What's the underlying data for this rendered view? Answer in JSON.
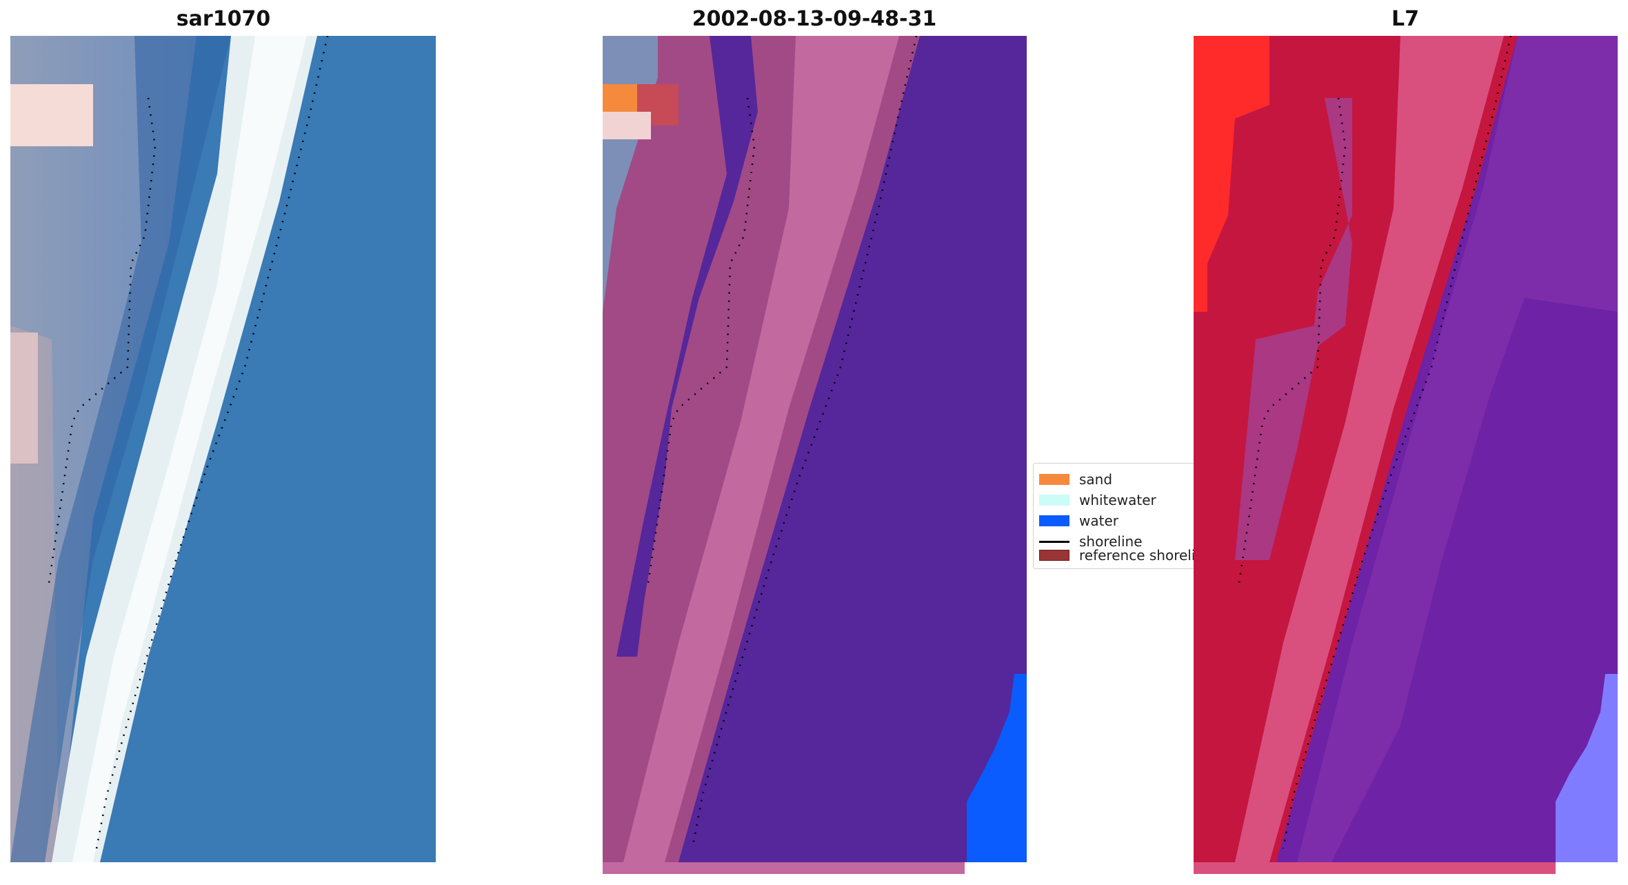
{
  "panels": [
    {
      "title": "sar1070"
    },
    {
      "title": "2002-08-13-09-48-31"
    },
    {
      "title": "L7"
    }
  ],
  "legend": {
    "items": [
      {
        "label": "sand",
        "color": "#f58a3d",
        "kind": "patch"
      },
      {
        "label": "whitewater",
        "color": "#ccfcf8",
        "kind": "patch"
      },
      {
        "label": "water",
        "color": "#0a5cff",
        "kind": "patch"
      },
      {
        "label": "shoreline",
        "color": "#000000",
        "kind": "line"
      },
      {
        "label": "reference shoreline",
        "color": "#9b3434",
        "kind": "patch"
      }
    ]
  },
  "colors": {
    "rgb_water": "#3a78b2",
    "rgb_surf": "#e9f3f4",
    "class_water": "#55279a",
    "class_sand_zone": "#b65e98",
    "class_open_water": "#0a5cff",
    "mndwi_land": "#c51640",
    "mndwi_water": "#6e22a5"
  }
}
